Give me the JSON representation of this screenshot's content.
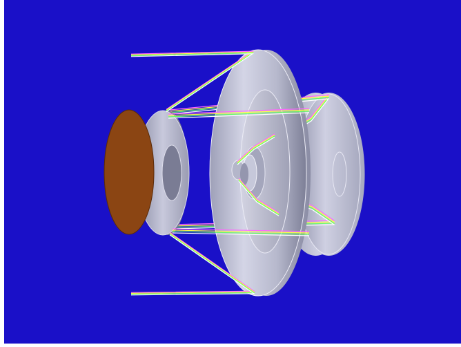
{
  "viewport": {
    "background_color": "#1a10c8",
    "frame_color": "#ffffff",
    "description_icon": "optical-telescope-model"
  },
  "model": {
    "disc_color": "#8b4513",
    "mirror_color": "#c8c8dc",
    "ray_colors": [
      "#ff66ff",
      "#ffff44",
      "#66ff66",
      "#ffffff"
    ]
  }
}
